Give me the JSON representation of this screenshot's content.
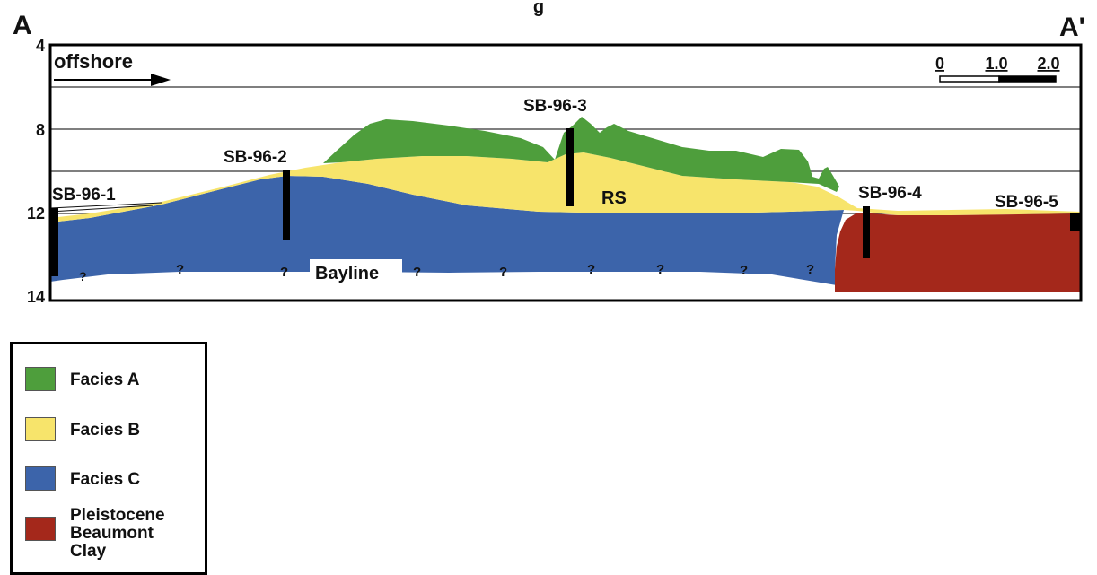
{
  "header": {
    "title_fragment": "g",
    "section_start": "A",
    "section_end": "A'"
  },
  "axis": {
    "y_ticks": [
      "4",
      "8",
      "12",
      "14"
    ]
  },
  "annotations": {
    "direction_label": "offshore",
    "unit_label": "RS",
    "boundary_label": "Bayline",
    "uncertain_marker": "?"
  },
  "scale_bar": {
    "labels": [
      "0",
      "1.0",
      "2.0"
    ]
  },
  "boreholes": [
    {
      "id": "SB-96-1"
    },
    {
      "id": "SB-96-2"
    },
    {
      "id": "SB-96-3"
    },
    {
      "id": "SB-96-4"
    },
    {
      "id": "SB-96-5"
    }
  ],
  "legend": {
    "items": [
      {
        "label_lines": [
          "Facies A"
        ],
        "color": "#4e9e3c"
      },
      {
        "label_lines": [
          "Facies B"
        ],
        "color": "#f7e46b"
      },
      {
        "label_lines": [
          "Facies C"
        ],
        "color": "#3c64aa"
      },
      {
        "label_lines": [
          "Pleistocene",
          "Beaumont",
          "Clay"
        ],
        "color": "#a4281b"
      }
    ]
  },
  "colors": {
    "facies_a": "#4e9e3c",
    "facies_b": "#f7e46b",
    "facies_c": "#3c64aa",
    "clay": "#a4281b",
    "frame": "#000000",
    "gridline": "#555555"
  }
}
